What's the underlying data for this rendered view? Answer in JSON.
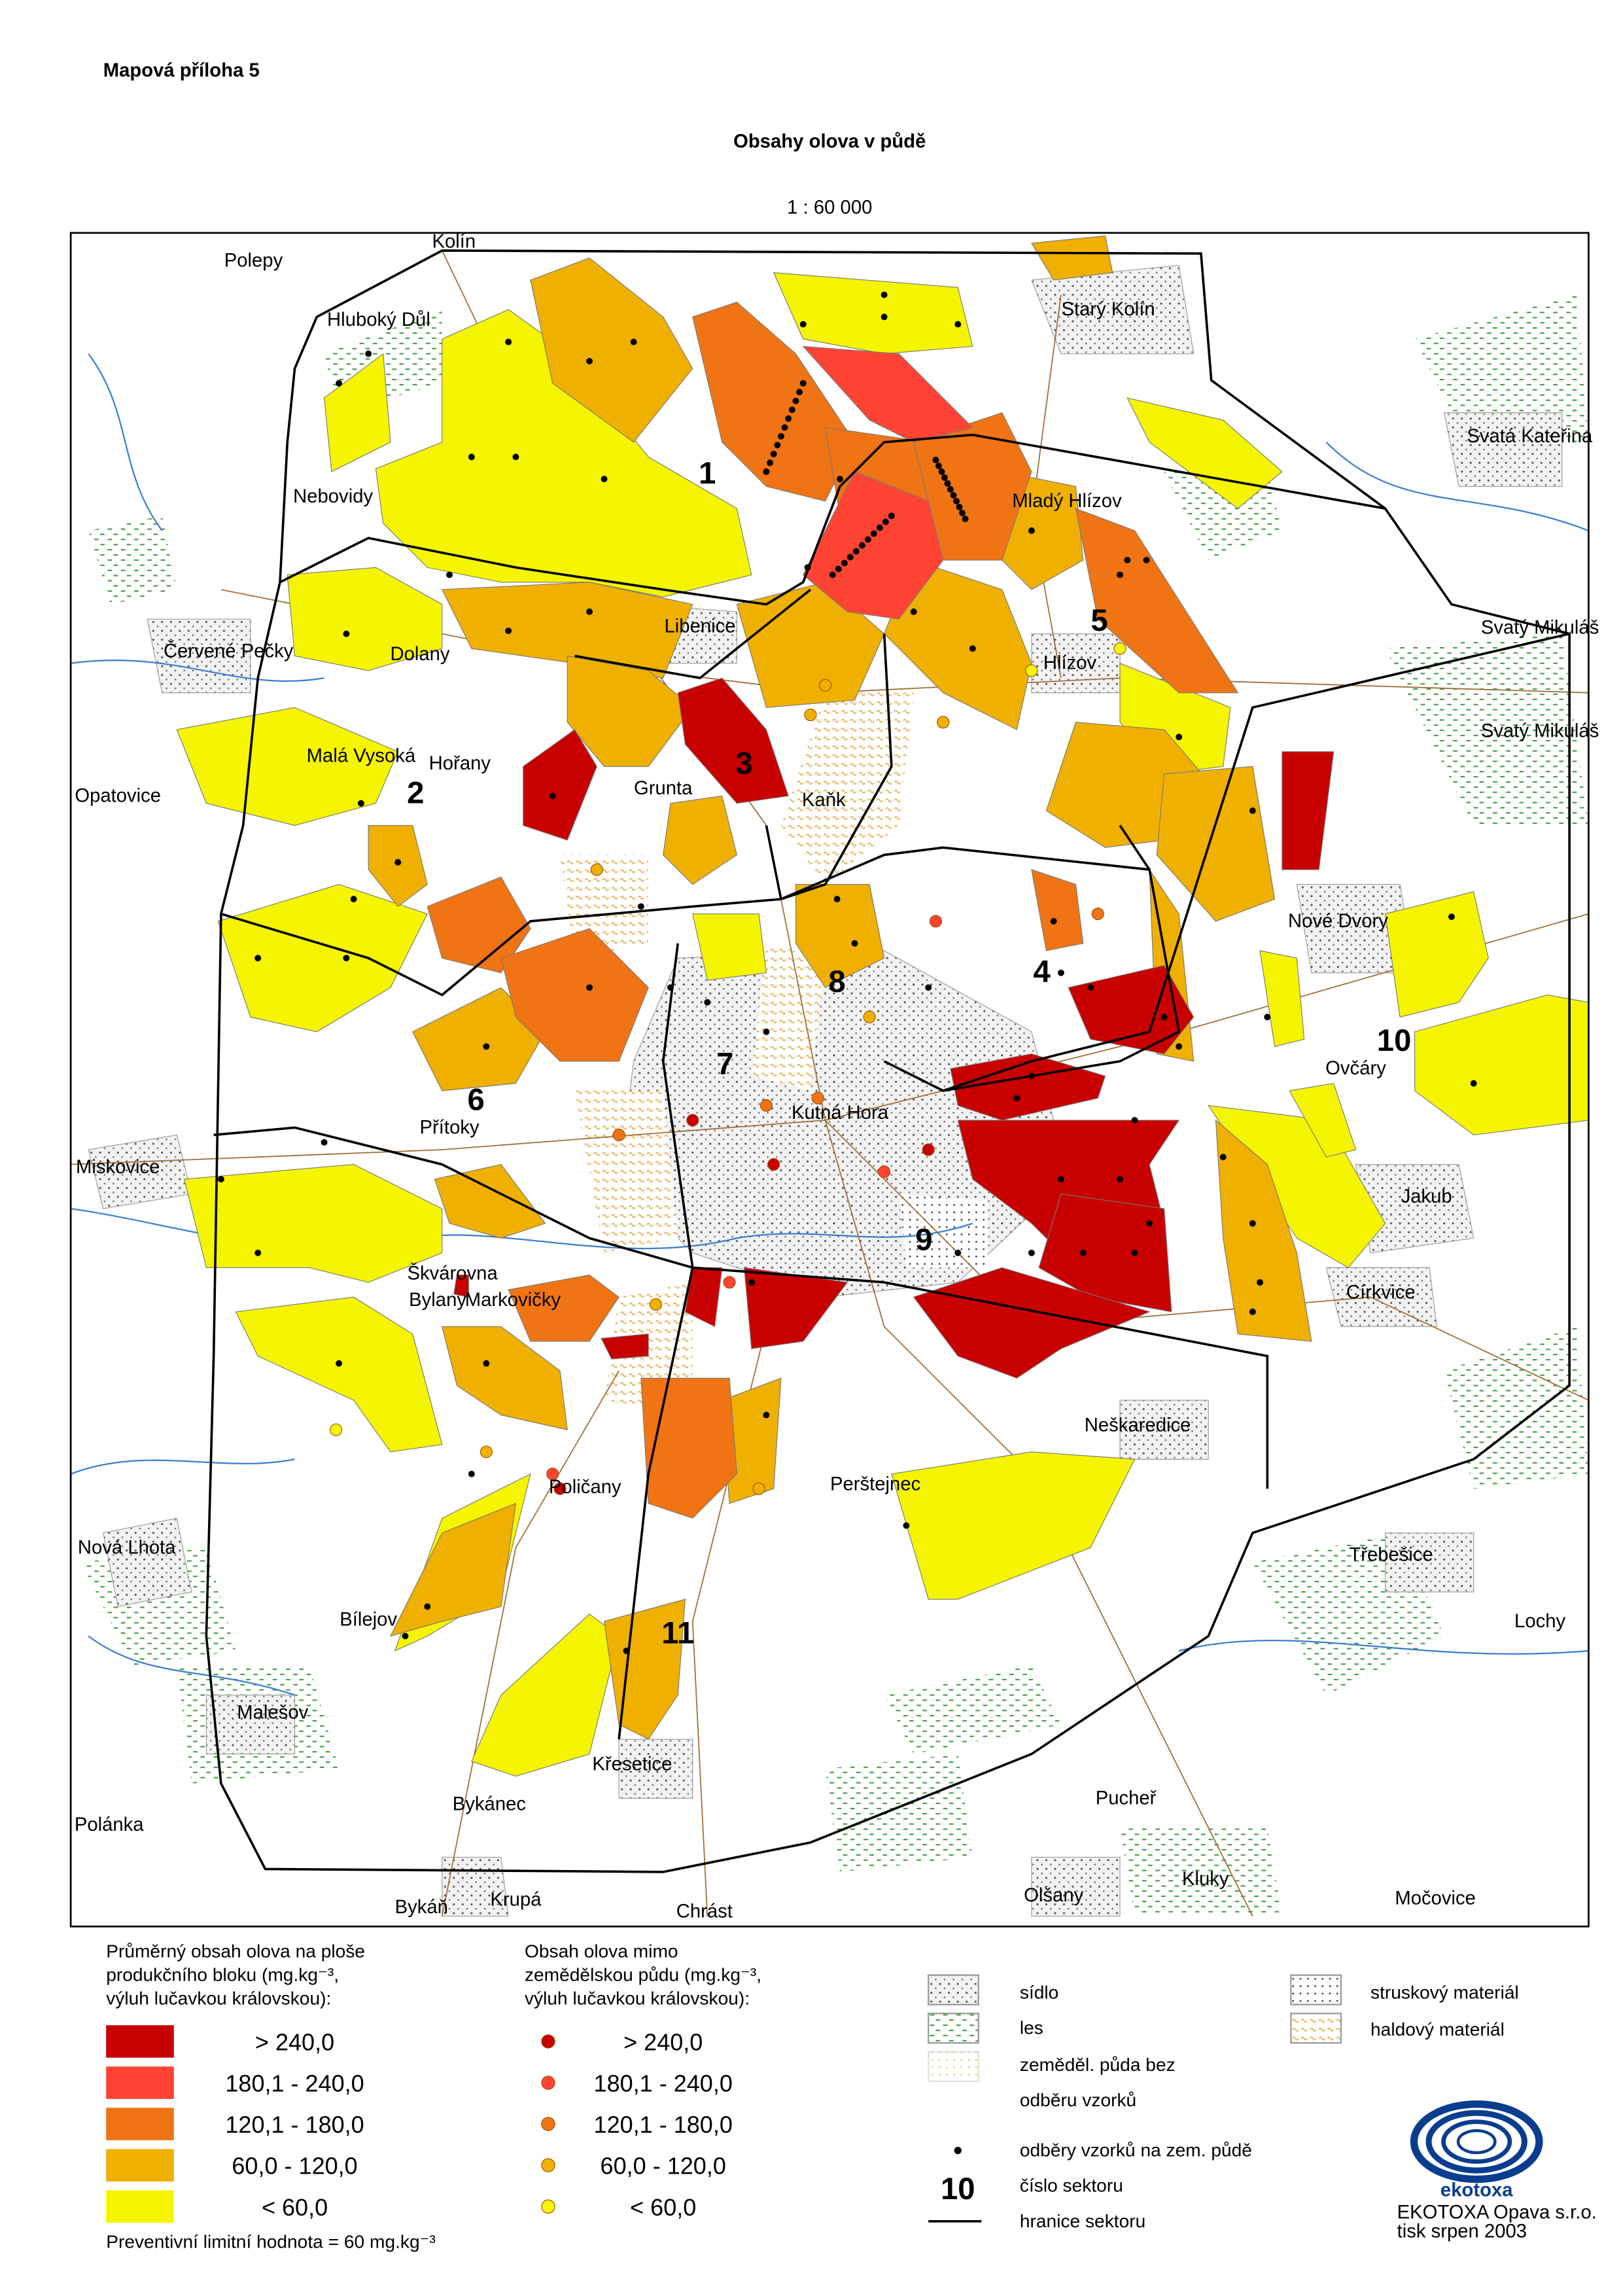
{
  "header": {
    "label": "Mapová příloha 5",
    "title": "Obsahy olova v půdě",
    "scale": "1 : 60 000"
  },
  "places": [
    "Kolín",
    "Polepy",
    "Hluboký Důl",
    "Starý Kolín",
    "Svatá Kateřina",
    "Nebovidy",
    "Mladý Hlízov",
    "Svatý Mikuláš",
    "Svatý Mikuláš",
    "Červené Pečky",
    "Dolany",
    "Libenice",
    "Hlízov",
    "Malá Vysoká",
    "Hořany",
    "Opatovice",
    "Grunta",
    "Kaňk",
    "Nové Dvory",
    "Ovčáry",
    "Přítoky",
    "Kutná Hora",
    "Miskovice",
    "Jakub",
    "Škvárovna",
    "Bylany",
    "Markovičky",
    "Církvice",
    "Neškaredice",
    "Poličany",
    "Perštejnec",
    "Nová Lhota",
    "Třebešice",
    "Bílejov",
    "Lochy",
    "Malešov",
    "Křesetice",
    "Bykánec",
    "Pucheř",
    "Polánka",
    "Kluky",
    "Olšany",
    "Bykáň",
    "Krupá",
    "Chrást",
    "Močovice"
  ],
  "sectors": [
    "1",
    "2",
    "3",
    "4",
    "5",
    "6",
    "7",
    "8",
    "9",
    "10",
    "11"
  ],
  "legend": {
    "block": {
      "title": [
        "Průměrný obsah olova na ploše",
        "produkčního bloku (mg.kg⁻³,",
        "výluh lučavkou královskou):"
      ],
      "items": [
        {
          "label": "> 240,0",
          "color": "#c80000"
        },
        {
          "label": "180,1 - 240,0",
          "color": "#ff4433"
        },
        {
          "label": "120,1 - 180,0",
          "color": "#f07414"
        },
        {
          "label": "60,0 - 120,0",
          "color": "#f0b000"
        },
        {
          "label": "< 60,0",
          "color": "#f5f500"
        }
      ],
      "note": "Preventivní limitní hodnota = 60 mg.kg⁻³"
    },
    "outside": {
      "title": [
        "Obsah olova mimo",
        "zemědělskou půdu (mg.kg⁻³,",
        "výluh lučavkou královskou):"
      ],
      "items": [
        {
          "label": "> 240,0",
          "color": "#c80000"
        },
        {
          "label": "180,1 - 240,0",
          "color": "#ff4433"
        },
        {
          "label": "120,1 - 180,0",
          "color": "#f07414"
        },
        {
          "label": "60,0 - 120,0",
          "color": "#f0b000"
        },
        {
          "label": "< 60,0",
          "color": "#f5f500"
        }
      ]
    },
    "symbols": {
      "settlement": "sídlo",
      "forest": "les",
      "agri": [
        "zeměděl. půda bez",
        "odběru vzorků"
      ],
      "slag": "struskový materiál",
      "dump": "haldový materiál",
      "samples": "odběry vzorků na zem. půdě",
      "sector_sample": "10",
      "sector_number": "číslo sektoru",
      "sector_border": "hranice sektoru"
    }
  },
  "logo": {
    "name": "ekotoxa",
    "company": "EKOTOXA Opava s.r.o.",
    "print": "tisk srpen 2003"
  }
}
